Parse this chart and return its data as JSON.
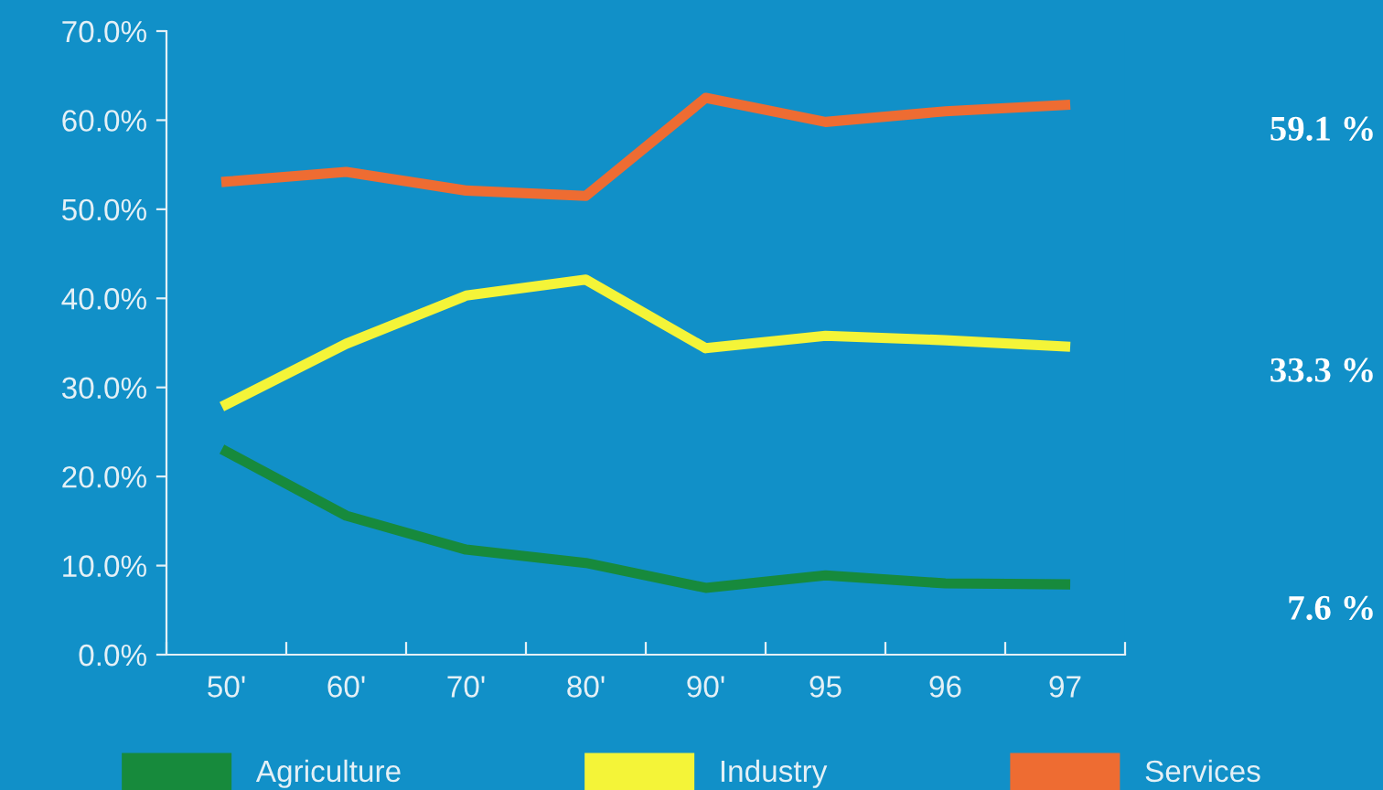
{
  "chart_data": {
    "type": "line",
    "categories": [
      "50'",
      "60'",
      "70'",
      "80'",
      "90'",
      "95",
      "96",
      "97"
    ],
    "series": [
      {
        "name": "Agriculture",
        "color": "#178a3c",
        "values": [
          22.8,
          15.6,
          11.8,
          10.3,
          7.5,
          8.9,
          8.0,
          7.9
        ]
      },
      {
        "name": "Industry",
        "color": "#f4f438",
        "values": [
          28.1,
          34.9,
          40.3,
          42.1,
          34.4,
          35.8,
          35.3,
          34.6
        ]
      },
      {
        "name": "Services",
        "color": "#ee6c32",
        "values": [
          53.1,
          54.2,
          52.1,
          51.5,
          62.5,
          59.8,
          61.0,
          61.7
        ]
      }
    ],
    "ylim": [
      0,
      70
    ],
    "yticks": [
      {
        "value": 0,
        "label": "0.0%"
      },
      {
        "value": 10,
        "label": "10.0%"
      },
      {
        "value": 20,
        "label": "20.0%"
      },
      {
        "value": 30,
        "label": "30.0%"
      },
      {
        "value": 40,
        "label": "40.0%"
      },
      {
        "value": 50,
        "label": "50.0%"
      },
      {
        "value": 60,
        "label": "60.0%"
      },
      {
        "value": 70,
        "label": "70.0%"
      }
    ],
    "annotations": [
      "59.1 %",
      "33.3 %",
      "7.6 %"
    ],
    "grid": false,
    "legend": "bottom",
    "marker": "none",
    "line_style": "solid"
  }
}
